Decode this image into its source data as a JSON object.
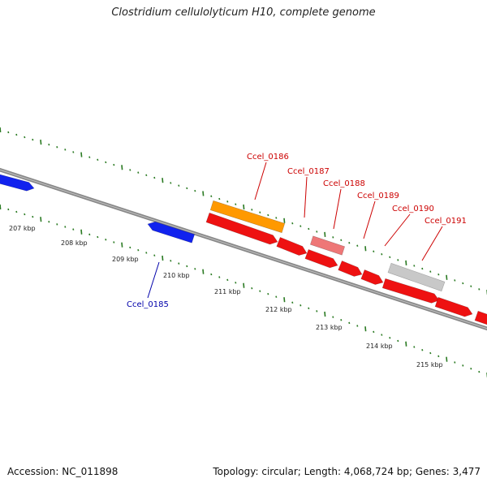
{
  "title": "Clostridium cellulolyticum H10, complete genome",
  "footer": {
    "accession": "Accession: NC_011898",
    "summary": "Topology: circular; Length: 4,068,724 bp; Genes: 3,477"
  },
  "colors": {
    "backbone": "#888888",
    "ticks": "#2a7a22",
    "gene_red": "#ee1111",
    "gene_orange": "#ff9900",
    "gene_pink": "#ee7777",
    "gene_grey": "#c8c8c8",
    "gene_blue": "#1122ee",
    "label_red": "#cc0000",
    "label_blue": "#0000aa"
  },
  "kbp_labels": [
    "207 kbp",
    "208 kbp",
    "209 kbp",
    "210 kbp",
    "211 kbp",
    "212 kbp",
    "213 kbp",
    "214 kbp",
    "215 kbp"
  ],
  "gene_labels": [
    {
      "name": "Ccel_0185",
      "color_key": "label_blue"
    },
    {
      "name": "Ccel_0186",
      "color_key": "label_red"
    },
    {
      "name": "Ccel_0187",
      "color_key": "label_red"
    },
    {
      "name": "Ccel_0188",
      "color_key": "label_red"
    },
    {
      "name": "Ccel_0189",
      "color_key": "label_red"
    },
    {
      "name": "Ccel_0190",
      "color_key": "label_red"
    },
    {
      "name": "Ccel_0191",
      "color_key": "label_red"
    }
  ]
}
